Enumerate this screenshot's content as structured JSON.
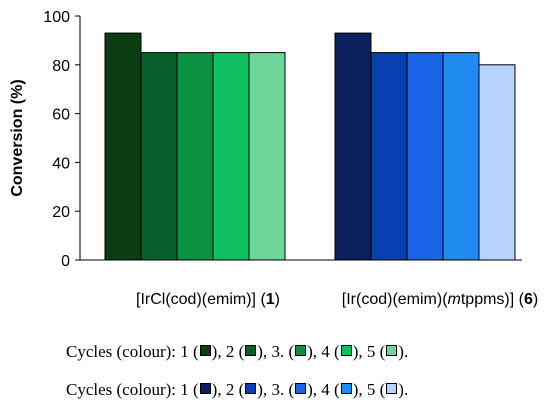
{
  "chart_data": {
    "type": "bar",
    "ylabel": "Conversion (%)",
    "ylim": [
      0,
      100
    ],
    "yticks": [
      0,
      20,
      40,
      60,
      80,
      100
    ],
    "grid": false,
    "groups": [
      {
        "label_parts": [
          {
            "text": "[IrCl(cod)(emim)] (",
            "style": "normal"
          },
          {
            "text": "1",
            "style": "bold"
          },
          {
            "text": ")",
            "style": "normal"
          }
        ],
        "values": [
          93,
          85,
          85,
          85,
          85
        ],
        "colors": [
          "#0a3d12",
          "#065f2b",
          "#0b9142",
          "#10c060",
          "#6ed69a"
        ]
      },
      {
        "label_parts": [
          {
            "text": "[Ir(cod)(emim)(",
            "style": "normal"
          },
          {
            "text": "m",
            "style": "italic"
          },
          {
            "text": "tppms)] (",
            "style": "normal"
          },
          {
            "text": "6",
            "style": "bold"
          },
          {
            "text": ")",
            "style": "normal"
          }
        ],
        "values": [
          93,
          85,
          85,
          85,
          80
        ],
        "colors": [
          "#0c1f5e",
          "#0a3fb0",
          "#1a64e8",
          "#1f8af0",
          "#b7d2fd"
        ]
      }
    ],
    "series_cycles": [
      1,
      2,
      3,
      4,
      5
    ]
  },
  "captions": [
    {
      "prefix": "Cycles (colour): ",
      "items": [
        {
          "num": "1",
          "sep": "), "
        },
        {
          "num": "2",
          "sep": "), "
        },
        {
          "num": "3.",
          "sep": "), "
        },
        {
          "num": "4",
          "sep": "), "
        },
        {
          "num": "5",
          "sep": ")."
        }
      ],
      "colors": [
        "#0a3d12",
        "#065f2b",
        "#0b9142",
        "#10c060",
        "#6ed69a"
      ]
    },
    {
      "prefix": "Cycles (colour): ",
      "items": [
        {
          "num": "1",
          "sep": "), "
        },
        {
          "num": "2",
          "sep": "), "
        },
        {
          "num": "3.",
          "sep": "), "
        },
        {
          "num": "4",
          "sep": "), "
        },
        {
          "num": "5",
          "sep": ")."
        }
      ],
      "colors": [
        "#0c1f5e",
        "#0a3fb0",
        "#1a64e8",
        "#1f8af0",
        "#b7d2fd"
      ]
    }
  ]
}
